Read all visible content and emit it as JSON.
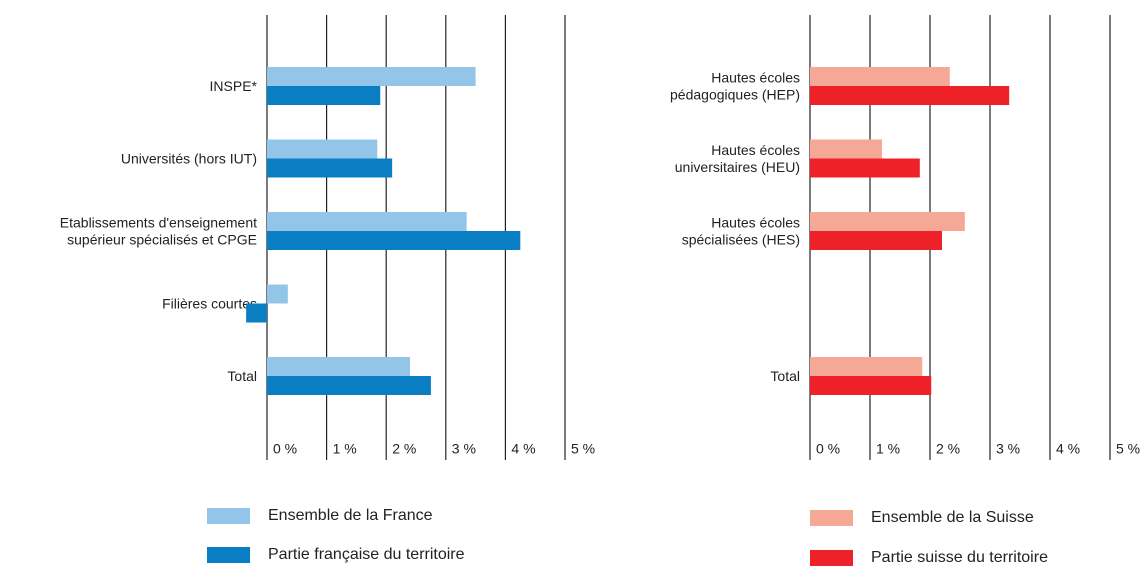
{
  "chart_data": [
    {
      "type": "bar",
      "orientation": "horizontal",
      "categories": [
        [
          "INSPE*"
        ],
        [
          "Universités (hors IUT)"
        ],
        [
          "Etablissements d'enseignement",
          "supérieur spécialisés et CPGE"
        ],
        [
          "Filières courtes"
        ],
        [
          "Total"
        ]
      ],
      "series": [
        {
          "name": "Ensemble de la France",
          "color": "#93c5e9",
          "values": [
            3.5,
            1.85,
            3.35,
            0.35,
            2.4
          ]
        },
        {
          "name": "Partie française du territoire",
          "color": "#0a7ec2",
          "values": [
            1.9,
            2.1,
            4.25,
            -0.35,
            2.75
          ]
        }
      ],
      "xlim": [
        0,
        5
      ],
      "xticks": [
        {
          "value": 0,
          "label": "0 %"
        },
        {
          "value": 1,
          "label": "1 %"
        },
        {
          "value": 2,
          "label": "2 %"
        },
        {
          "value": 3,
          "label": "3 %"
        },
        {
          "value": 4,
          "label": "4 %"
        },
        {
          "value": 5,
          "label": "5 %"
        }
      ],
      "grid": true
    },
    {
      "type": "bar",
      "orientation": "horizontal",
      "categories": [
        [
          "Hautes écoles",
          "pédagogiques (HEP)"
        ],
        [
          "Hautes écoles",
          "universitaires (HEU)"
        ],
        [
          "Hautes écoles",
          "spécialisées (HES)"
        ],
        null,
        [
          "Total"
        ]
      ],
      "series": [
        {
          "name": "Ensemble de la Suisse",
          "color": "#f6a896",
          "values": [
            2.33,
            1.2,
            2.58,
            null,
            1.87
          ]
        },
        {
          "name": "Partie suisse du territoire",
          "color": "#ee2129",
          "values": [
            3.32,
            1.83,
            2.2,
            null,
            2.02
          ]
        }
      ],
      "xlim": [
        0,
        5
      ],
      "xticks": [
        {
          "value": 0,
          "label": "0 %"
        },
        {
          "value": 1,
          "label": "1 %"
        },
        {
          "value": 2,
          "label": "2 %"
        },
        {
          "value": 3,
          "label": "3 %"
        },
        {
          "value": 4,
          "label": "4 %"
        },
        {
          "value": 5,
          "label": "5 %"
        }
      ],
      "grid": true
    }
  ]
}
